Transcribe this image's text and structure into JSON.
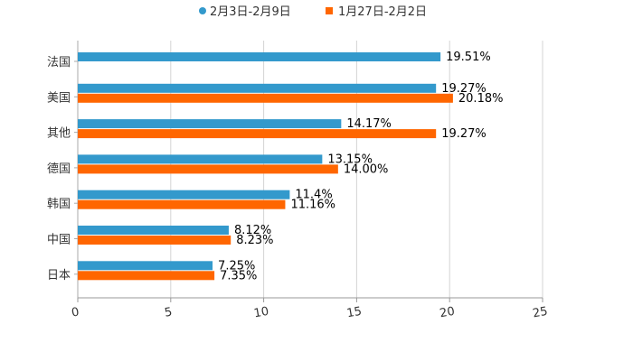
{
  "chart_data": {
    "type": "bar",
    "orientation": "horizontal",
    "title": "",
    "xlabel": "",
    "ylabel": "",
    "xlim": [
      0,
      25
    ],
    "x_ticks": [
      "0",
      "5",
      "10",
      "15",
      "20",
      "25"
    ],
    "grid": true,
    "legend_position": "top-center",
    "categories": [
      "法国",
      "美国",
      "其他",
      "德国",
      "韩国",
      "中国",
      "日本"
    ],
    "series": [
      {
        "name": "2月3日-2月9日",
        "color": "#3399cc",
        "values": [
          19.51,
          19.27,
          14.17,
          13.15,
          11.4,
          8.12,
          7.25
        ],
        "labels": [
          "19.51%",
          "19.27%",
          "14.17%",
          "13.15%",
          "11.4%",
          "8.12%",
          "7.25%"
        ]
      },
      {
        "name": "1月27日-2月2日",
        "color": "#ff6600",
        "values": [
          null,
          20.18,
          19.27,
          14.0,
          11.16,
          8.23,
          7.35
        ],
        "labels": [
          "",
          "20.18%",
          "19.27%",
          "14.00%",
          "11.16%",
          "8.23%",
          "7.35%"
        ]
      }
    ]
  }
}
